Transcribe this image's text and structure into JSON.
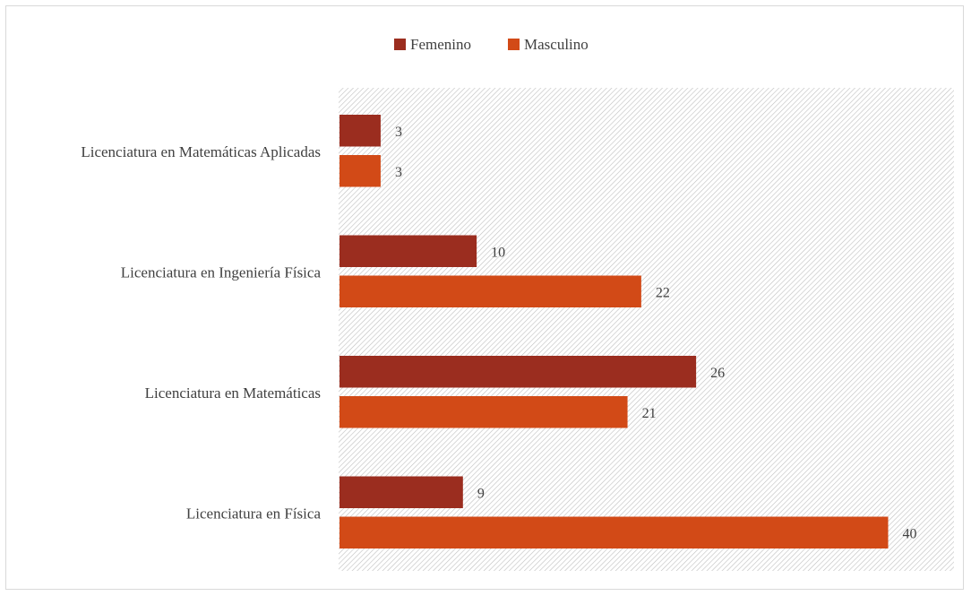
{
  "chart_data": {
    "type": "bar",
    "orientation": "horizontal",
    "title": "",
    "xlabel": "",
    "ylabel": "",
    "categories": [
      "Licenciatura en Matemáticas Aplicadas",
      "Licenciatura en Ingeniería Física",
      "Licenciatura en Matemáticas",
      "Licenciatura en Física"
    ],
    "series": [
      {
        "name": "Femenino",
        "color": "#9b2d1f",
        "values": [
          3,
          10,
          26,
          9
        ]
      },
      {
        "name": "Masculino",
        "color": "#d24a17",
        "values": [
          3,
          22,
          21,
          40
        ]
      }
    ],
    "xlim": [
      0,
      45
    ],
    "legend_position": "top",
    "data_labels": true,
    "grid": false,
    "plot_background": "diagonal-hatch"
  }
}
